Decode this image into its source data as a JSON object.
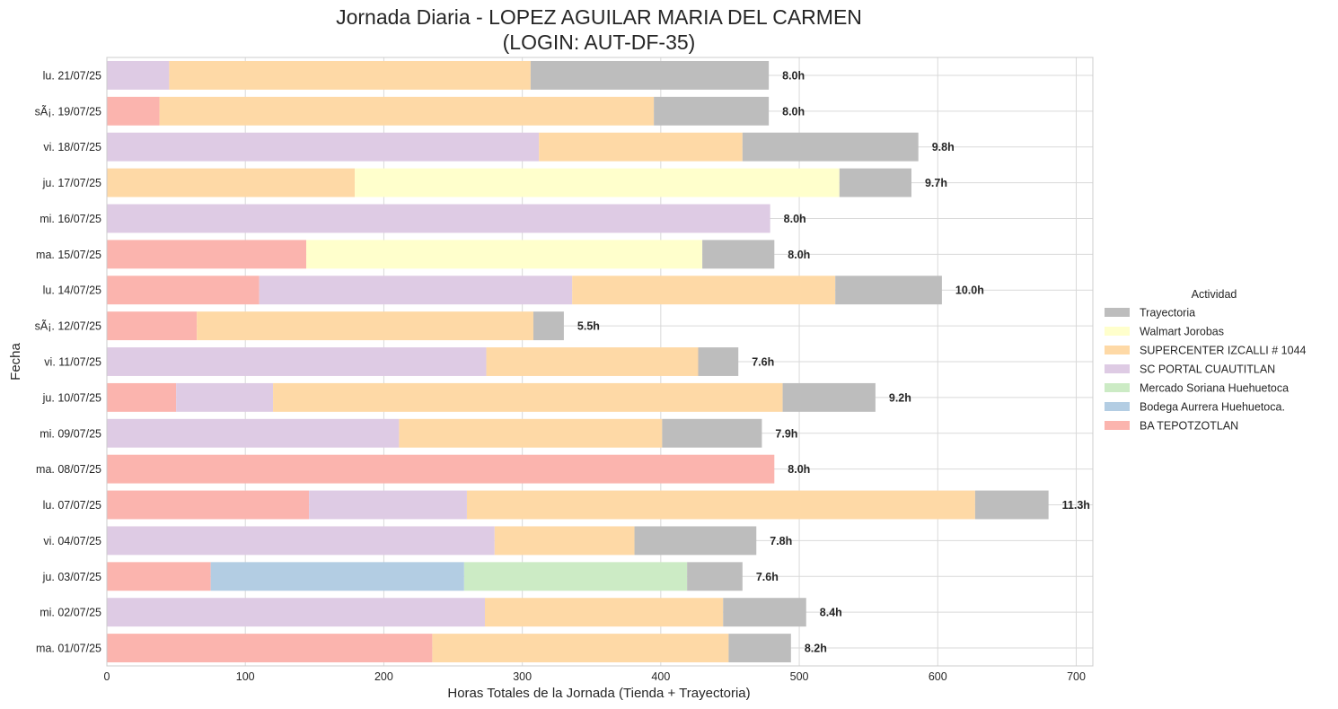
{
  "chart_data": {
    "type": "bar",
    "orientation": "horizontal",
    "stacked": true,
    "title": "Jornada Diaria - LOPEZ AGUILAR MARIA DEL CARMEN",
    "subtitle": "(LOGIN: AUT-DF-35)",
    "xlabel": "Horas Totales de la Jornada (Tienda + Trayectoria)",
    "ylabel": "Fecha",
    "xlim": [
      0,
      712
    ],
    "xticks": [
      0,
      100,
      200,
      300,
      400,
      500,
      600,
      700
    ],
    "grid": true,
    "legend_title": "Actividad",
    "legend_position": "center-right",
    "categories": [
      "ma. 01/07/25",
      "mi. 02/07/25",
      "ju. 03/07/25",
      "vi. 04/07/25",
      "lu. 07/07/25",
      "ma. 08/07/25",
      "mi. 09/07/25",
      "ju. 10/07/25",
      "vi. 11/07/25",
      "sÃ¡. 12/07/25",
      "lu. 14/07/25",
      "ma. 15/07/25",
      "mi. 16/07/25",
      "ju. 17/07/25",
      "vi. 18/07/25",
      "sÃ¡. 19/07/25",
      "lu. 21/07/25"
    ],
    "totals": [
      "8.2h",
      "8.4h",
      "7.6h",
      "7.8h",
      "11.3h",
      "8.0h",
      "7.9h",
      "9.2h",
      "7.6h",
      "5.5h",
      "10.0h",
      "8.0h",
      "8.0h",
      "9.7h",
      "9.8h",
      "8.0h",
      "8.0h"
    ],
    "series": [
      {
        "name": "BA TEPOTZOTLAN",
        "color": "#fbb4ae",
        "values": [
          235,
          0,
          75,
          0,
          146,
          482,
          0,
          50,
          0,
          65,
          110,
          144,
          0,
          0,
          0,
          38,
          0
        ]
      },
      {
        "name": "Bodega Aurrera Huehuetoca.",
        "color": "#b3cde3",
        "values": [
          0,
          0,
          183,
          0,
          0,
          0,
          0,
          0,
          0,
          0,
          0,
          0,
          0,
          0,
          0,
          0,
          0
        ]
      },
      {
        "name": "Mercado Soriana Huehuetoca",
        "color": "#ccebc5",
        "values": [
          0,
          0,
          161,
          0,
          0,
          0,
          0,
          0,
          0,
          0,
          0,
          0,
          0,
          0,
          0,
          0,
          0
        ]
      },
      {
        "name": "SC PORTAL CUAUTITLAN",
        "color": "#decbe4",
        "values": [
          0,
          273,
          0,
          280,
          114,
          0,
          211,
          70,
          274,
          0,
          226,
          0,
          479,
          0,
          312,
          0,
          45
        ]
      },
      {
        "name": "SUPERCENTER IZCALLI # 1044",
        "color": "#fed9a6",
        "values": [
          214,
          172,
          0,
          101,
          367,
          0,
          190,
          368,
          153,
          243,
          190,
          0,
          0,
          179,
          147,
          357,
          261
        ]
      },
      {
        "name": "Walmart Jorobas",
        "color": "#ffffcc",
        "values": [
          0,
          0,
          0,
          0,
          0,
          0,
          0,
          0,
          0,
          0,
          0,
          286,
          0,
          350,
          0,
          0,
          0
        ]
      },
      {
        "name": "Trayectoria",
        "color": "#bdbdbd",
        "values": [
          45,
          60,
          40,
          88,
          53,
          0,
          72,
          67,
          29,
          22,
          77,
          52,
          0,
          52,
          127,
          83,
          172
        ]
      }
    ],
    "legend_order": [
      "Trayectoria",
      "Walmart Jorobas",
      "SUPERCENTER IZCALLI # 1044",
      "SC PORTAL CUAUTITLAN",
      "Mercado Soriana Huehuetoca",
      "Bodega Aurrera Huehuetoca.",
      "BA TEPOTZOTLAN"
    ]
  }
}
